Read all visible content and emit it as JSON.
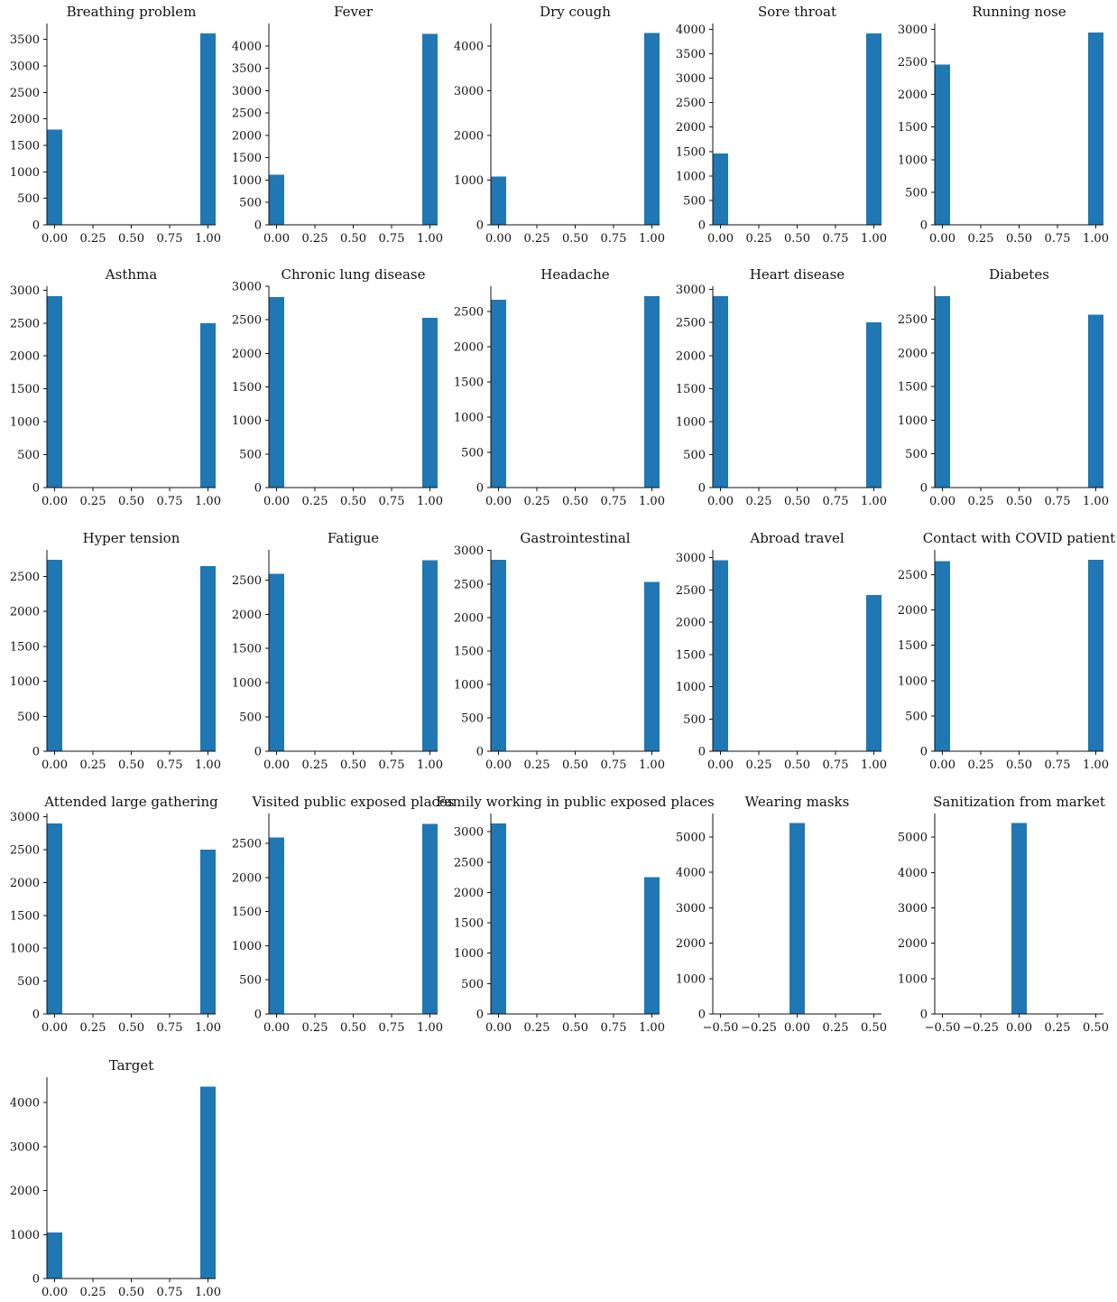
{
  "colors": {
    "bar": "#1f77b4",
    "axis": "#111111"
  },
  "chart_data": [
    {
      "type": "bar",
      "title": "Breathing problem",
      "x": [
        0,
        1
      ],
      "values": [
        1800,
        3610
      ],
      "xlim": [
        -0.05,
        1.05
      ],
      "ylim": [
        0,
        3800
      ],
      "xticks": [
        0,
        0.25,
        0.5,
        0.75,
        1
      ],
      "xtick_labels": [
        "0.00",
        "0.25",
        "0.50",
        "0.75",
        "1.00"
      ],
      "yticks": [
        0,
        500,
        1000,
        1500,
        2000,
        2500,
        3000,
        3500
      ],
      "ytick_labels": [
        "0",
        "500",
        "1000",
        "1500",
        "2000",
        "2500",
        "3000",
        "3500"
      ]
    },
    {
      "type": "bar",
      "title": "Fever",
      "x": [
        0,
        1
      ],
      "values": [
        1120,
        4270
      ],
      "xlim": [
        -0.05,
        1.05
      ],
      "ylim": [
        0,
        4500
      ],
      "xticks": [
        0,
        0.25,
        0.5,
        0.75,
        1
      ],
      "xtick_labels": [
        "0.00",
        "0.25",
        "0.50",
        "0.75",
        "1.00"
      ],
      "yticks": [
        0,
        500,
        1000,
        1500,
        2000,
        2500,
        3000,
        3500,
        4000
      ],
      "ytick_labels": [
        "0",
        "500",
        "1000",
        "1500",
        "2000",
        "2500",
        "3000",
        "3500",
        "4000"
      ]
    },
    {
      "type": "bar",
      "title": "Dry cough",
      "x": [
        0,
        1
      ],
      "values": [
        1080,
        4290
      ],
      "xlim": [
        -0.05,
        1.05
      ],
      "ylim": [
        0,
        4500
      ],
      "xticks": [
        0,
        0.25,
        0.5,
        0.75,
        1
      ],
      "xtick_labels": [
        "0.00",
        "0.25",
        "0.50",
        "0.75",
        "1.00"
      ],
      "yticks": [
        0,
        1000,
        2000,
        3000,
        4000
      ],
      "ytick_labels": [
        "0",
        "1000",
        "2000",
        "3000",
        "4000"
      ]
    },
    {
      "type": "bar",
      "title": "Sore throat",
      "x": [
        0,
        1
      ],
      "values": [
        1460,
        3920
      ],
      "xlim": [
        -0.05,
        1.05
      ],
      "ylim": [
        0,
        4120
      ],
      "xticks": [
        0,
        0.25,
        0.5,
        0.75,
        1
      ],
      "xtick_labels": [
        "0.00",
        "0.25",
        "0.50",
        "0.75",
        "1.00"
      ],
      "yticks": [
        0,
        500,
        1000,
        1500,
        2000,
        2500,
        3000,
        3500,
        4000
      ],
      "ytick_labels": [
        "0",
        "500",
        "1000",
        "1500",
        "2000",
        "2500",
        "3000",
        "3500",
        "4000"
      ]
    },
    {
      "type": "bar",
      "title": "Running nose",
      "x": [
        0,
        1
      ],
      "values": [
        2460,
        2950
      ],
      "xlim": [
        -0.05,
        1.05
      ],
      "ylim": [
        0,
        3090
      ],
      "xticks": [
        0,
        0.25,
        0.5,
        0.75,
        1
      ],
      "xtick_labels": [
        "0.00",
        "0.25",
        "0.50",
        "0.75",
        "1.00"
      ],
      "yticks": [
        0,
        500,
        1000,
        1500,
        2000,
        2500,
        3000
      ],
      "ytick_labels": [
        "0",
        "500",
        "1000",
        "1500",
        "2000",
        "2500",
        "3000"
      ]
    },
    {
      "type": "bar",
      "title": "Asthma",
      "x": [
        0,
        1
      ],
      "values": [
        2910,
        2500
      ],
      "xlim": [
        -0.05,
        1.05
      ],
      "ylim": [
        0,
        3060
      ],
      "xticks": [
        0,
        0.25,
        0.5,
        0.75,
        1
      ],
      "xtick_labels": [
        "0.00",
        "0.25",
        "0.50",
        "0.75",
        "1.00"
      ],
      "yticks": [
        0,
        500,
        1000,
        1500,
        2000,
        2500,
        3000
      ],
      "ytick_labels": [
        "0",
        "500",
        "1000",
        "1500",
        "2000",
        "2500",
        "3000"
      ]
    },
    {
      "type": "bar",
      "title": "Chronic lung disease",
      "x": [
        0,
        1
      ],
      "values": [
        2840,
        2530
      ],
      "xlim": [
        -0.05,
        1.05
      ],
      "ylim": [
        0,
        3000
      ],
      "xticks": [
        0,
        0.25,
        0.5,
        0.75,
        1
      ],
      "xtick_labels": [
        "0.00",
        "0.25",
        "0.50",
        "0.75",
        "1.00"
      ],
      "yticks": [
        0,
        500,
        1000,
        1500,
        2000,
        2500,
        3000
      ],
      "ytick_labels": [
        "0",
        "500",
        "1000",
        "1500",
        "2000",
        "2500",
        "3000"
      ]
    },
    {
      "type": "bar",
      "title": "Headache",
      "x": [
        0,
        1
      ],
      "values": [
        2670,
        2720
      ],
      "xlim": [
        -0.05,
        1.05
      ],
      "ylim": [
        0,
        2860
      ],
      "xticks": [
        0,
        0.25,
        0.5,
        0.75,
        1
      ],
      "xtick_labels": [
        "0.00",
        "0.25",
        "0.50",
        "0.75",
        "1.00"
      ],
      "yticks": [
        0,
        500,
        1000,
        1500,
        2000,
        2500
      ],
      "ytick_labels": [
        "0",
        "500",
        "1000",
        "1500",
        "2000",
        "2500"
      ]
    },
    {
      "type": "bar",
      "title": "Heart disease",
      "x": [
        0,
        1
      ],
      "values": [
        2900,
        2500
      ],
      "xlim": [
        -0.05,
        1.05
      ],
      "ylim": [
        0,
        3050
      ],
      "xticks": [
        0,
        0.25,
        0.5,
        0.75,
        1
      ],
      "xtick_labels": [
        "0.00",
        "0.25",
        "0.50",
        "0.75",
        "1.00"
      ],
      "yticks": [
        0,
        500,
        1000,
        1500,
        2000,
        2500,
        3000
      ],
      "ytick_labels": [
        "0",
        "500",
        "1000",
        "1500",
        "2000",
        "2500",
        "3000"
      ]
    },
    {
      "type": "bar",
      "title": "Diabetes",
      "x": [
        0,
        1
      ],
      "values": [
        2840,
        2570
      ],
      "xlim": [
        -0.05,
        1.05
      ],
      "ylim": [
        0,
        2990
      ],
      "xticks": [
        0,
        0.25,
        0.5,
        0.75,
        1
      ],
      "xtick_labels": [
        "0.00",
        "0.25",
        "0.50",
        "0.75",
        "1.00"
      ],
      "yticks": [
        0,
        500,
        1000,
        1500,
        2000,
        2500
      ],
      "ytick_labels": [
        "0",
        "500",
        "1000",
        "1500",
        "2000",
        "2500"
      ]
    },
    {
      "type": "bar",
      "title": "Hyper tension",
      "x": [
        0,
        1
      ],
      "values": [
        2740,
        2650
      ],
      "xlim": [
        -0.05,
        1.05
      ],
      "ylim": [
        0,
        2880
      ],
      "xticks": [
        0,
        0.25,
        0.5,
        0.75,
        1
      ],
      "xtick_labels": [
        "0.00",
        "0.25",
        "0.50",
        "0.75",
        "1.00"
      ],
      "yticks": [
        0,
        500,
        1000,
        1500,
        2000,
        2500
      ],
      "ytick_labels": [
        "0",
        "500",
        "1000",
        "1500",
        "2000",
        "2500"
      ]
    },
    {
      "type": "bar",
      "title": "Fatigue",
      "x": [
        0,
        1
      ],
      "values": [
        2590,
        2790
      ],
      "xlim": [
        -0.05,
        1.05
      ],
      "ylim": [
        0,
        2940
      ],
      "xticks": [
        0,
        0.25,
        0.5,
        0.75,
        1
      ],
      "xtick_labels": [
        "0.00",
        "0.25",
        "0.50",
        "0.75",
        "1.00"
      ],
      "yticks": [
        0,
        500,
        1000,
        1500,
        2000,
        2500
      ],
      "ytick_labels": [
        "0",
        "500",
        "1000",
        "1500",
        "2000",
        "2500"
      ]
    },
    {
      "type": "bar",
      "title": "Gastrointestinal",
      "x": [
        0,
        1
      ],
      "values": [
        2860,
        2530
      ],
      "xlim": [
        -0.05,
        1.05
      ],
      "ylim": [
        0,
        3010
      ],
      "xticks": [
        0,
        0.25,
        0.5,
        0.75,
        1
      ],
      "xtick_labels": [
        "0.00",
        "0.25",
        "0.50",
        "0.75",
        "1.00"
      ],
      "yticks": [
        0,
        500,
        1000,
        1500,
        2000,
        2500,
        3000
      ],
      "ytick_labels": [
        "0",
        "500",
        "1000",
        "1500",
        "2000",
        "2500",
        "3000"
      ]
    },
    {
      "type": "bar",
      "title": "Abroad travel",
      "x": [
        0,
        1
      ],
      "values": [
        2960,
        2420
      ],
      "xlim": [
        -0.05,
        1.05
      ],
      "ylim": [
        0,
        3120
      ],
      "xticks": [
        0,
        0.25,
        0.5,
        0.75,
        1
      ],
      "xtick_labels": [
        "0.00",
        "0.25",
        "0.50",
        "0.75",
        "1.00"
      ],
      "yticks": [
        0,
        500,
        1000,
        1500,
        2000,
        2500,
        3000
      ],
      "ytick_labels": [
        "0",
        "500",
        "1000",
        "1500",
        "2000",
        "2500",
        "3000"
      ]
    },
    {
      "type": "bar",
      "title": "Contact with COVID patient",
      "x": [
        0,
        1
      ],
      "values": [
        2690,
        2710
      ],
      "xlim": [
        -0.05,
        1.05
      ],
      "ylim": [
        0,
        2850
      ],
      "xticks": [
        0,
        0.25,
        0.5,
        0.75,
        1
      ],
      "xtick_labels": [
        "0.00",
        "0.25",
        "0.50",
        "0.75",
        "1.00"
      ],
      "yticks": [
        0,
        500,
        1000,
        1500,
        2000,
        2500
      ],
      "ytick_labels": [
        "0",
        "500",
        "1000",
        "1500",
        "2000",
        "2500"
      ]
    },
    {
      "type": "bar",
      "title": "Attended large gathering",
      "x": [
        0,
        1
      ],
      "values": [
        2900,
        2500
      ],
      "xlim": [
        -0.05,
        1.05
      ],
      "ylim": [
        0,
        3050
      ],
      "xticks": [
        0,
        0.25,
        0.5,
        0.75,
        1
      ],
      "xtick_labels": [
        "0.00",
        "0.25",
        "0.50",
        "0.75",
        "1.00"
      ],
      "yticks": [
        0,
        500,
        1000,
        1500,
        2000,
        2500,
        3000
      ],
      "ytick_labels": [
        "0",
        "500",
        "1000",
        "1500",
        "2000",
        "2500",
        "3000"
      ]
    },
    {
      "type": "bar",
      "title": "Visited public exposed places",
      "x": [
        0,
        1
      ],
      "values": [
        2590,
        2790
      ],
      "xlim": [
        -0.05,
        1.05
      ],
      "ylim": [
        0,
        2940
      ],
      "xticks": [
        0,
        0.25,
        0.5,
        0.75,
        1
      ],
      "xtick_labels": [
        "0.00",
        "0.25",
        "0.50",
        "0.75",
        "1.00"
      ],
      "yticks": [
        0,
        500,
        1000,
        1500,
        2000,
        2500
      ],
      "ytick_labels": [
        "0",
        "500",
        "1000",
        "1500",
        "2000",
        "2500"
      ]
    },
    {
      "type": "bar",
      "title": "Family working in public exposed places",
      "x": [
        0,
        1
      ],
      "values": [
        3140,
        2250
      ],
      "xlim": [
        -0.05,
        1.05
      ],
      "ylim": [
        0,
        3300
      ],
      "xticks": [
        0,
        0.25,
        0.5,
        0.75,
        1
      ],
      "xtick_labels": [
        "0.00",
        "0.25",
        "0.50",
        "0.75",
        "1.00"
      ],
      "yticks": [
        0,
        500,
        1000,
        1500,
        2000,
        2500,
        3000
      ],
      "ytick_labels": [
        "0",
        "500",
        "1000",
        "1500",
        "2000",
        "2500",
        "3000"
      ]
    },
    {
      "type": "bar",
      "title": "Wearing masks",
      "x": [
        0
      ],
      "values": [
        5390
      ],
      "xlim": [
        -0.55,
        0.55
      ],
      "ylim": [
        0,
        5660
      ],
      "xticks": [
        -0.5,
        -0.25,
        0,
        0.25,
        0.5
      ],
      "xtick_labels": [
        "−0.50",
        "−0.25",
        "0.00",
        "0.25",
        "0.50"
      ],
      "yticks": [
        0,
        1000,
        2000,
        3000,
        4000,
        5000
      ],
      "ytick_labels": [
        "0",
        "1000",
        "2000",
        "3000",
        "4000",
        "5000"
      ]
    },
    {
      "type": "bar",
      "title": "Sanitization from market",
      "x": [
        0
      ],
      "values": [
        5400
      ],
      "xlim": [
        -0.55,
        0.55
      ],
      "ylim": [
        0,
        5670
      ],
      "xticks": [
        -0.5,
        -0.25,
        0,
        0.25,
        0.5
      ],
      "xtick_labels": [
        "−0.50",
        "−0.25",
        "0.00",
        "0.25",
        "0.50"
      ],
      "yticks": [
        0,
        1000,
        2000,
        3000,
        4000,
        5000
      ],
      "ytick_labels": [
        "0",
        "1000",
        "2000",
        "3000",
        "4000",
        "5000"
      ]
    },
    {
      "type": "bar",
      "title": "Target",
      "x": [
        0,
        1
      ],
      "values": [
        1050,
        4360
      ],
      "xlim": [
        -0.05,
        1.05
      ],
      "ylim": [
        0,
        4580
      ],
      "xticks": [
        0,
        0.25,
        0.5,
        0.75,
        1
      ],
      "xtick_labels": [
        "0.00",
        "0.25",
        "0.50",
        "0.75",
        "1.00"
      ],
      "yticks": [
        0,
        1000,
        2000,
        3000,
        4000
      ],
      "ytick_labels": [
        "0",
        "1000",
        "2000",
        "3000",
        "4000"
      ]
    }
  ]
}
